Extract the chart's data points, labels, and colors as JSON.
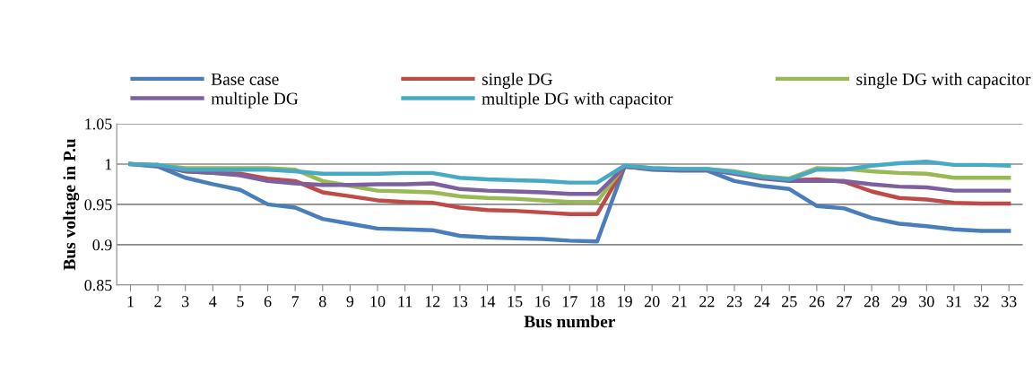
{
  "chart_data": {
    "type": "line",
    "xlabel": "Bus number",
    "ylabel": "Bus voltage in P.u",
    "categories": [
      "1",
      "2",
      "3",
      "4",
      "5",
      "6",
      "7",
      "8",
      "9",
      "10",
      "11",
      "12",
      "13",
      "14",
      "15",
      "16",
      "17",
      "18",
      "19",
      "20",
      "21",
      "22",
      "23",
      "24",
      "25",
      "26",
      "27",
      "28",
      "29",
      "30",
      "31",
      "32",
      "33"
    ],
    "series": [
      {
        "name": "Base case",
        "color": "#4a7ebb",
        "values": [
          1,
          0.997,
          0.983,
          0.975,
          0.968,
          0.95,
          0.946,
          0.932,
          0.926,
          0.92,
          0.919,
          0.918,
          0.911,
          0.909,
          0.908,
          0.907,
          0.905,
          0.904,
          0.997,
          0.993,
          0.992,
          0.992,
          0.979,
          0.973,
          0.969,
          0.948,
          0.945,
          0.933,
          0.926,
          0.923,
          0.919,
          0.917,
          0.917
        ]
      },
      {
        "name": "single DG",
        "color": "#be4b48",
        "values": [
          null,
          0.999,
          0.991,
          0.989,
          0.988,
          0.982,
          0.979,
          0.965,
          0.96,
          0.955,
          0.953,
          0.952,
          0.946,
          0.943,
          0.942,
          0.94,
          0.938,
          0.938,
          0.997,
          0.994,
          0.993,
          0.993,
          0.989,
          0.983,
          0.98,
          0.981,
          0.978,
          0.966,
          0.958,
          0.956,
          0.952,
          0.951,
          0.951
        ]
      },
      {
        "name": "single DG with capacitor",
        "color": "#98b954",
        "values": [
          1,
          0.999,
          0.995,
          0.995,
          0.995,
          0.995,
          0.993,
          0.979,
          0.973,
          0.967,
          0.966,
          0.965,
          0.96,
          0.958,
          0.957,
          0.955,
          0.953,
          0.953,
          0.998,
          0.995,
          0.994,
          0.994,
          0.991,
          0.985,
          0.982,
          0.995,
          0.994,
          0.991,
          0.989,
          0.988,
          0.983,
          0.983,
          0.983
        ]
      },
      {
        "name": "multiple DG",
        "color": "#7d60a0",
        "values": [
          1,
          0.998,
          0.991,
          0.989,
          0.986,
          0.979,
          0.976,
          0.974,
          0.974,
          0.975,
          0.975,
          0.976,
          0.969,
          0.967,
          0.966,
          0.965,
          0.963,
          0.963,
          0.997,
          0.994,
          0.993,
          0.993,
          0.988,
          0.982,
          0.979,
          0.979,
          0.979,
          0.975,
          0.972,
          0.971,
          0.967,
          0.967,
          0.967
        ]
      },
      {
        "name": "multiple DG with capacitor",
        "color": "#46aac5",
        "values": [
          1,
          0.999,
          0.993,
          0.993,
          0.993,
          0.993,
          0.991,
          0.988,
          0.988,
          0.988,
          0.989,
          0.989,
          0.983,
          0.981,
          0.98,
          0.979,
          0.977,
          0.977,
          0.998,
          0.995,
          0.994,
          0.994,
          0.99,
          0.984,
          0.981,
          0.993,
          0.993,
          0.998,
          1.001,
          1.003,
          0.999,
          0.999,
          0.998
        ]
      }
    ],
    "ylim": [
      0.85,
      1.05
    ],
    "yticks": [
      0.85,
      0.9,
      0.95,
      1,
      1.05
    ],
    "grid": "y",
    "legend": "top",
    "marker": "none",
    "line_style": "solid"
  }
}
